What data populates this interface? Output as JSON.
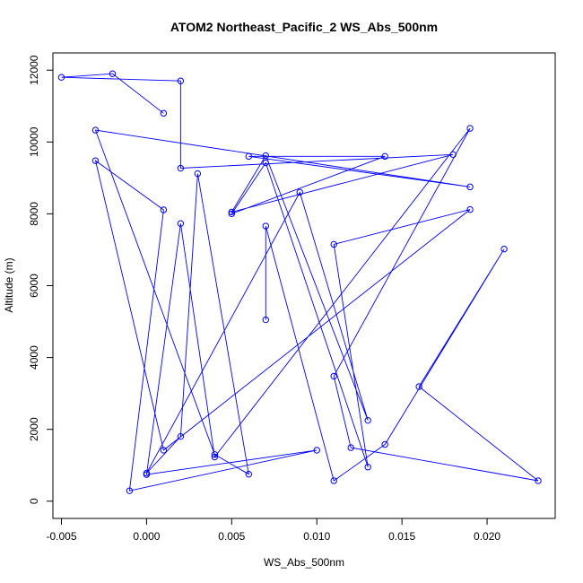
{
  "chart_data": {
    "type": "line",
    "title": "ATOM2 Northeast_Pacific_2 WS_Abs_500nm",
    "xlabel": "WS_Abs_500nm",
    "ylabel": "Altitude (m)",
    "xlim": [
      -0.0055,
      0.024
    ],
    "ylim": [
      -480,
      12480
    ],
    "x_ticks": [
      -0.005,
      0.0,
      0.005,
      0.01,
      0.015,
      0.02
    ],
    "x_tick_labels": [
      "-0.005",
      "0.000",
      "0.005",
      "0.010",
      "0.015",
      "0.020"
    ],
    "y_ticks": [
      0,
      2000,
      4000,
      6000,
      8000,
      10000,
      12000
    ],
    "y_tick_labels": [
      "0",
      "2000",
      "4000",
      "6000",
      "8000",
      "10000",
      "12000"
    ],
    "grid": false,
    "series_color": "#0000ff",
    "marker": "open-circle",
    "series": [
      {
        "points": [
          [
            0.001,
            10800
          ],
          [
            -0.002,
            11900
          ],
          [
            -0.005,
            11800
          ],
          [
            0.002,
            11700
          ],
          [
            0.002,
            9270
          ],
          [
            0.018,
            9650
          ],
          [
            0.005,
            8050
          ],
          [
            0.007,
            9620
          ],
          [
            0.013,
            2250
          ],
          [
            0.009,
            8600
          ],
          [
            0.0,
            780
          ],
          [
            0.002,
            1800
          ],
          [
            0.003,
            9120
          ],
          [
            0.006,
            750
          ],
          [
            0.004,
            1300
          ],
          [
            -0.003,
            10330
          ],
          [
            0.019,
            8750
          ],
          [
            0.006,
            9600
          ],
          [
            0.014,
            9600
          ],
          [
            0.005,
            8000
          ],
          [
            0.007,
            9420
          ],
          [
            0.013,
            950
          ],
          [
            0.011,
            7150
          ],
          [
            0.019,
            8120
          ],
          [
            0.001,
            1420
          ],
          [
            -0.003,
            9480
          ],
          [
            0.001,
            8110
          ],
          [
            -0.001,
            290
          ],
          [
            0.01,
            1420
          ],
          [
            0.0,
            740
          ],
          [
            0.002,
            7730
          ],
          [
            0.004,
            1230
          ],
          [
            0.019,
            10380
          ],
          [
            0.011,
            3480
          ],
          [
            0.012,
            1490
          ],
          [
            0.023,
            570
          ],
          [
            0.016,
            3190
          ],
          [
            0.021,
            7020
          ],
          [
            0.014,
            1580
          ],
          [
            0.011,
            570
          ],
          [
            0.007,
            7660
          ],
          [
            0.007,
            5050
          ]
        ]
      }
    ]
  }
}
